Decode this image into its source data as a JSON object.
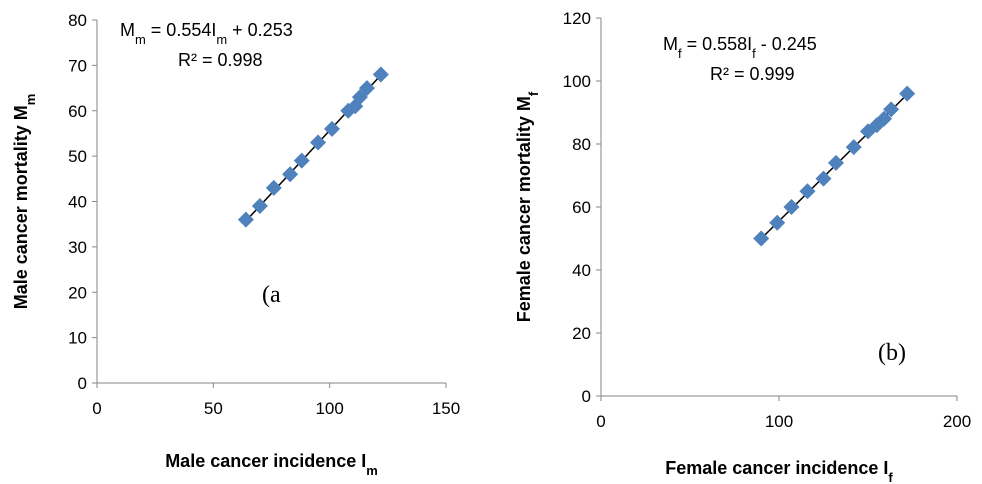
{
  "chart_data": [
    {
      "type": "scatter",
      "panel_label": "(a",
      "xlabel": "Male cancer incidence I",
      "xlabel_sub": "m",
      "ylabel": "Male cancer mortality M",
      "ylabel_sub": "m",
      "xlim": [
        0,
        150
      ],
      "ylim": [
        0,
        80
      ],
      "x_ticks": [
        0,
        50,
        100,
        150
      ],
      "y_ticks": [
        0,
        10,
        20,
        30,
        40,
        50,
        60,
        70,
        80
      ],
      "equation": {
        "lhs": "M",
        "lhs_sub": "m",
        "mid": " = 0.554I",
        "mid_sub": "m",
        "rhs": " + 0.253"
      },
      "r2": "R² = 0.998",
      "trendline": {
        "slope": 0.554,
        "intercept": 0.253,
        "x_range": [
          64,
          122
        ]
      },
      "series": [
        {
          "color": "#4f81bd",
          "marker": "diamond",
          "points": [
            {
              "x": 64,
              "y": 36
            },
            {
              "x": 70,
              "y": 39
            },
            {
              "x": 76,
              "y": 43
            },
            {
              "x": 83,
              "y": 46
            },
            {
              "x": 88,
              "y": 49
            },
            {
              "x": 95,
              "y": 53
            },
            {
              "x": 101,
              "y": 56
            },
            {
              "x": 108,
              "y": 60
            },
            {
              "x": 111,
              "y": 61
            },
            {
              "x": 113,
              "y": 63
            },
            {
              "x": 116,
              "y": 65
            },
            {
              "x": 122,
              "y": 68
            }
          ]
        }
      ]
    },
    {
      "type": "scatter",
      "panel_label": "(b)",
      "xlabel": "Female cancer incidence I",
      "xlabel_sub": "f",
      "ylabel": "Female cancer mortality M",
      "ylabel_sub": "f",
      "xlim": [
        0,
        200
      ],
      "ylim": [
        0,
        120
      ],
      "x_ticks": [
        0,
        100,
        200
      ],
      "y_ticks": [
        0,
        20,
        40,
        60,
        80,
        100,
        120
      ],
      "equation": {
        "lhs": "M",
        "lhs_sub": "f",
        "mid": " = 0.558I",
        "mid_sub": "f",
        "rhs": " - 0.245"
      },
      "r2": "R² = 0.999",
      "trendline": {
        "slope": 0.558,
        "intercept": -0.245,
        "x_range": [
          90,
          172
        ]
      },
      "series": [
        {
          "color": "#4f81bd",
          "marker": "diamond",
          "points": [
            {
              "x": 90,
              "y": 50
            },
            {
              "x": 99,
              "y": 55
            },
            {
              "x": 107,
              "y": 60
            },
            {
              "x": 116,
              "y": 65
            },
            {
              "x": 125,
              "y": 69
            },
            {
              "x": 132,
              "y": 74
            },
            {
              "x": 142,
              "y": 79
            },
            {
              "x": 150,
              "y": 84
            },
            {
              "x": 155,
              "y": 86
            },
            {
              "x": 159,
              "y": 88
            },
            {
              "x": 163,
              "y": 91
            },
            {
              "x": 172,
              "y": 96
            }
          ]
        }
      ]
    }
  ]
}
